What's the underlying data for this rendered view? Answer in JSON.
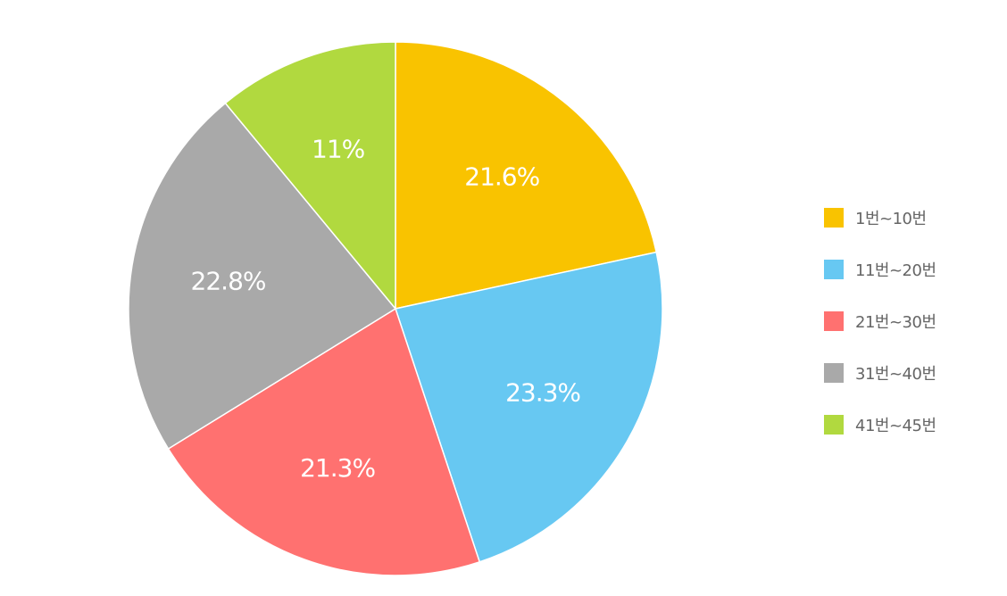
{
  "chart_data": {
    "type": "pie",
    "categories": [
      "1번~10번",
      "11번~20번",
      "21번~30번",
      "31번~40번",
      "41번~45번"
    ],
    "values": [
      21.6,
      23.3,
      21.3,
      22.8,
      11
    ],
    "data_labels": [
      "21.6%",
      "23.3%",
      "21.3%",
      "22.8%",
      "11%"
    ],
    "colors": [
      "#F9C300",
      "#67C8F2",
      "#FF7170",
      "#A9A9A9",
      "#B1D93F"
    ],
    "start_angle": "12 o'clock",
    "direction": "clockwise",
    "legend_position": "right",
    "title": ""
  }
}
